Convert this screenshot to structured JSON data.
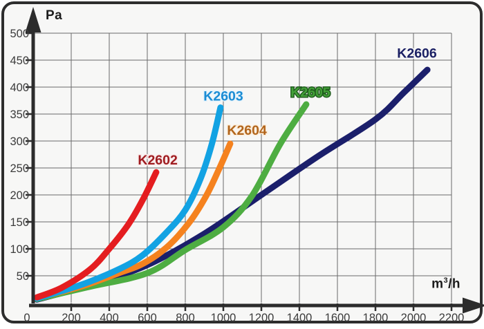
{
  "chart_data": {
    "type": "line",
    "title": "",
    "xlabel_prefix": "m",
    "xlabel_sup": "3",
    "xlabel_suffix": "/h",
    "ylabel": "Pa",
    "xlim": [
      0,
      2200
    ],
    "ylim": [
      0,
      500
    ],
    "grid": true,
    "legend_position": "labels-at-curve-ends",
    "xticks": [
      0,
      200,
      400,
      600,
      800,
      1000,
      1200,
      1400,
      1600,
      1800,
      2000,
      2200
    ],
    "yticks": [
      50,
      100,
      150,
      200,
      250,
      300,
      350,
      400,
      450,
      500
    ],
    "series": [
      {
        "name": "K2606",
        "color": "#1b1f6b",
        "label_color": "#1b2064",
        "label_outline": "#f7f7f6",
        "label_anchor": {
          "x": 2018,
          "y": 462
        },
        "points": [
          [
            20,
            6
          ],
          [
            300,
            33
          ],
          [
            600,
            70
          ],
          [
            900,
            128
          ],
          [
            1200,
            200
          ],
          [
            1500,
            272
          ],
          [
            1800,
            340
          ],
          [
            1950,
            390
          ],
          [
            2073,
            432
          ]
        ]
      },
      {
        "name": "K2605",
        "color": "#4ead42",
        "label_color": "#43a038",
        "label_outline": "#215e1f",
        "label_anchor": {
          "x": 1458,
          "y": 390
        },
        "points": [
          [
            20,
            7
          ],
          [
            300,
            30
          ],
          [
            600,
            55
          ],
          [
            800,
            98
          ],
          [
            1000,
            140
          ],
          [
            1150,
            198
          ],
          [
            1300,
            295
          ],
          [
            1436,
            368
          ]
        ]
      },
      {
        "name": "K2604",
        "color": "#f5821f",
        "label_color": "#b2651c",
        "label_outline": "#fbeedd",
        "label_anchor": {
          "x": 1124,
          "y": 319
        },
        "points": [
          [
            20,
            9
          ],
          [
            250,
            30
          ],
          [
            450,
            55
          ],
          [
            575,
            72
          ],
          [
            700,
            102
          ],
          [
            817,
            147
          ],
          [
            908,
            197
          ],
          [
            975,
            246
          ],
          [
            1036,
            295
          ]
        ]
      },
      {
        "name": "K2603",
        "color": "#12a2e3",
        "label_color": "#1b8cd4",
        "label_outline": "#e6f3fb",
        "label_anchor": {
          "x": 1000,
          "y": 383
        },
        "points": [
          [
            20,
            8
          ],
          [
            250,
            33
          ],
          [
            450,
            62
          ],
          [
            575,
            88
          ],
          [
            700,
            130
          ],
          [
            800,
            172
          ],
          [
            880,
            230
          ],
          [
            940,
            295
          ],
          [
            985,
            362
          ]
        ]
      },
      {
        "name": "K2602",
        "color": "#e41d20",
        "label_color": "#9f1c20",
        "label_outline": "#f9eaea",
        "label_anchor": {
          "x": 655,
          "y": 264
        },
        "points": [
          [
            20,
            10
          ],
          [
            150,
            28
          ],
          [
            300,
            62
          ],
          [
            400,
            100
          ],
          [
            500,
            145
          ],
          [
            575,
            190
          ],
          [
            647,
            242
          ]
        ]
      }
    ]
  },
  "colors": {
    "background": "#f7f7f6",
    "border": "#2d2d2d",
    "grid": "#6a6a6a",
    "axis": "#2c2c2c",
    "tick_text": "#3b3b3b"
  }
}
